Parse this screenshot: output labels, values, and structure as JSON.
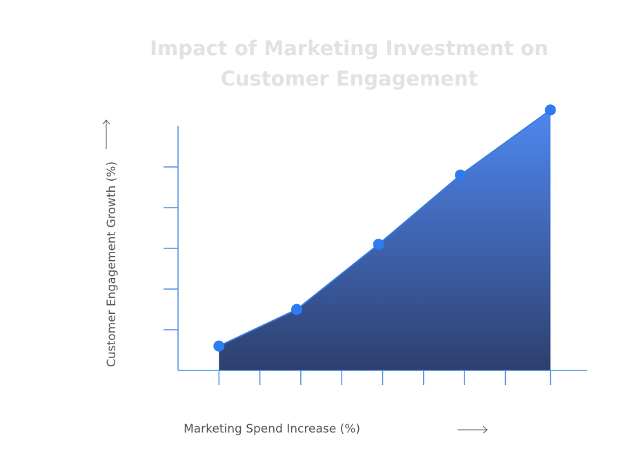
{
  "chart_data": {
    "type": "area",
    "title": "Impact of Marketing Investment on",
    "title_line2": "Customer Engagement",
    "x_label": "Marketing Spend Increase (%)",
    "y_label": "Customer Engagement Growth (%)",
    "x": [
      1,
      2.9,
      4.9,
      6.9,
      9.1
    ],
    "values": [
      0.6,
      1.5,
      3.1,
      4.8,
      6.4
    ],
    "xlim": [
      0,
      10
    ],
    "ylim": [
      0,
      6
    ],
    "xticks": [
      1,
      2,
      3,
      4,
      5,
      6,
      7,
      8,
      9.1
    ],
    "yticks": [
      1,
      2,
      3,
      4,
      5
    ],
    "color": "#3b7de0"
  }
}
